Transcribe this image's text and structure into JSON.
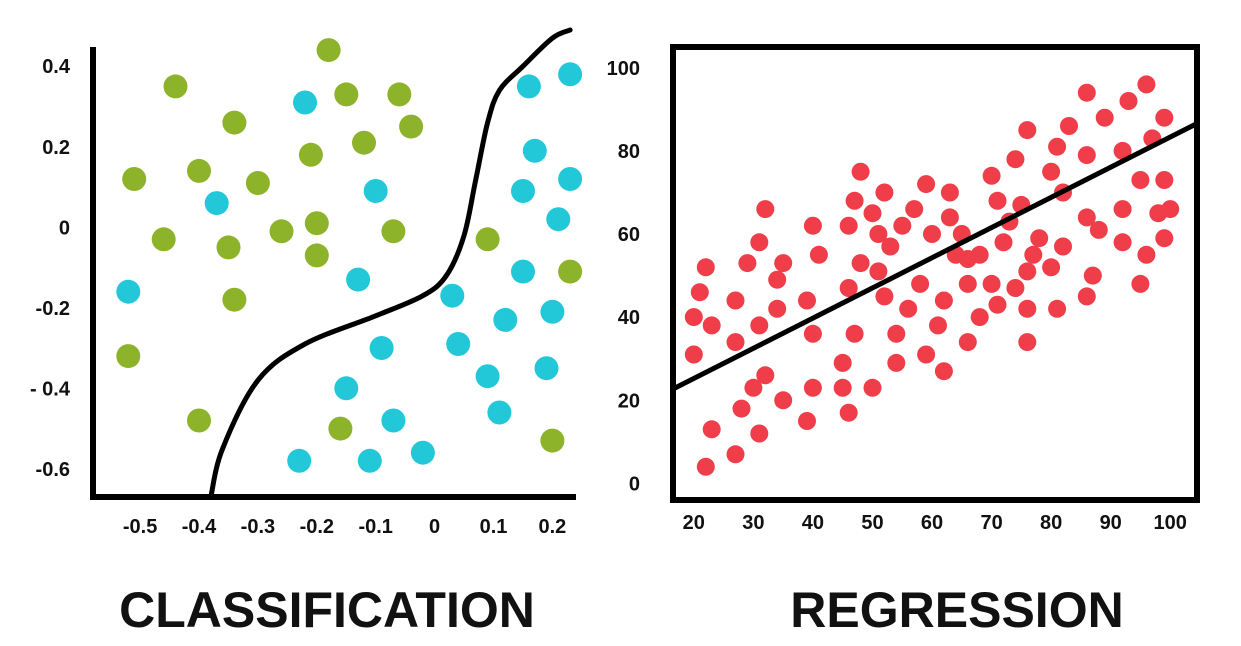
{
  "chart_data": [
    {
      "type": "scatter",
      "caption": "CLASSIFICATION",
      "x_ticks": [
        "-0.5",
        "-0.4",
        "-0.3",
        "-0.2",
        "-0.1",
        "0",
        "0.1",
        "0.2"
      ],
      "y_ticks": [
        "0.4",
        "0.2",
        "0",
        "-0.2",
        "- 0.4",
        "-0.6"
      ],
      "xlim": [
        -0.58,
        0.24
      ],
      "ylim": [
        -0.67,
        0.49
      ],
      "grid": false,
      "legend": "none",
      "series": [
        {
          "color": "#8db32a",
          "points": [
            [
              -0.18,
              0.44
            ],
            [
              -0.44,
              0.35
            ],
            [
              -0.15,
              0.33
            ],
            [
              -0.06,
              0.33
            ],
            [
              -0.34,
              0.26
            ],
            [
              -0.04,
              0.25
            ],
            [
              -0.12,
              0.21
            ],
            [
              -0.21,
              0.18
            ],
            [
              -0.4,
              0.14
            ],
            [
              -0.51,
              0.12
            ],
            [
              -0.3,
              0.11
            ],
            [
              -0.26,
              -0.01
            ],
            [
              -0.2,
              0.01
            ],
            [
              -0.07,
              -0.01
            ],
            [
              -0.46,
              -0.03
            ],
            [
              -0.35,
              -0.05
            ],
            [
              -0.2,
              -0.07
            ],
            [
              0.09,
              -0.03
            ],
            [
              0.23,
              -0.11
            ],
            [
              -0.34,
              -0.18
            ],
            [
              -0.52,
              -0.32
            ],
            [
              -0.4,
              -0.48
            ],
            [
              -0.16,
              -0.5
            ],
            [
              0.2,
              -0.53
            ]
          ]
        },
        {
          "color": "#22c8d8",
          "points": [
            [
              0.16,
              0.35
            ],
            [
              0.23,
              0.38
            ],
            [
              -0.22,
              0.31
            ],
            [
              0.17,
              0.19
            ],
            [
              0.23,
              0.12
            ],
            [
              -0.37,
              0.06
            ],
            [
              -0.1,
              0.09
            ],
            [
              0.15,
              0.09
            ],
            [
              0.21,
              0.02
            ],
            [
              -0.13,
              -0.13
            ],
            [
              -0.52,
              -0.16
            ],
            [
              0.15,
              -0.11
            ],
            [
              0.03,
              -0.17
            ],
            [
              0.12,
              -0.23
            ],
            [
              0.2,
              -0.21
            ],
            [
              -0.09,
              -0.3
            ],
            [
              0.04,
              -0.29
            ],
            [
              0.09,
              -0.37
            ],
            [
              0.19,
              -0.35
            ],
            [
              -0.15,
              -0.4
            ],
            [
              -0.07,
              -0.48
            ],
            [
              0.11,
              -0.46
            ],
            [
              -0.23,
              -0.58
            ],
            [
              -0.11,
              -0.58
            ],
            [
              -0.02,
              -0.56
            ]
          ]
        }
      ],
      "boundary": [
        [
          -0.38,
          -0.67
        ],
        [
          -0.36,
          -0.55
        ],
        [
          -0.3,
          -0.38
        ],
        [
          -0.22,
          -0.29
        ],
        [
          -0.1,
          -0.22
        ],
        [
          -0.02,
          -0.17
        ],
        [
          0.02,
          -0.12
        ],
        [
          0.05,
          -0.02
        ],
        [
          0.07,
          0.12
        ],
        [
          0.09,
          0.26
        ],
        [
          0.11,
          0.34
        ],
        [
          0.15,
          0.4
        ],
        [
          0.2,
          0.47
        ],
        [
          0.23,
          0.49
        ]
      ]
    },
    {
      "type": "scatter",
      "caption": "REGRESSION",
      "x_ticks": [
        "20",
        "30",
        "40",
        "50",
        "60",
        "70",
        "80",
        "90",
        "100"
      ],
      "y_ticks": [
        "100",
        "80",
        "60",
        "40",
        "20",
        "0"
      ],
      "xlim": [
        16.5,
        104.5
      ],
      "ylim": [
        -4,
        105
      ],
      "grid": false,
      "legend": "none",
      "trend_line": [
        [
          16.5,
          22.7
        ],
        [
          104.5,
          86.6
        ]
      ],
      "series": [
        {
          "color": "#ef3e4a",
          "points": [
            [
              22,
              52
            ],
            [
              21,
              46
            ],
            [
              20,
              40
            ],
            [
              20,
              31
            ],
            [
              23,
              38
            ],
            [
              27,
              44
            ],
            [
              29,
              53
            ],
            [
              31,
              58
            ],
            [
              32,
              66
            ],
            [
              34,
              49
            ],
            [
              35,
              53
            ],
            [
              27,
              34
            ],
            [
              31,
              38
            ],
            [
              34,
              42
            ],
            [
              39,
              44
            ],
            [
              41,
              55
            ],
            [
              40,
              62
            ],
            [
              40,
              36
            ],
            [
              32,
              26
            ],
            [
              30,
              23
            ],
            [
              35,
              20
            ],
            [
              28,
              18
            ],
            [
              23,
              13
            ],
            [
              31,
              12
            ],
            [
              27,
              7
            ],
            [
              22,
              4
            ],
            [
              39,
              15
            ],
            [
              40,
              23
            ],
            [
              47,
              68
            ],
            [
              48,
              75
            ],
            [
              50,
              65
            ],
            [
              52,
              70
            ],
            [
              46,
              62
            ],
            [
              51,
              60
            ],
            [
              53,
              57
            ],
            [
              55,
              62
            ],
            [
              57,
              66
            ],
            [
              59,
              72
            ],
            [
              60,
              60
            ],
            [
              63,
              64
            ],
            [
              63,
              70
            ],
            [
              65,
              60
            ],
            [
              46,
              47
            ],
            [
              48,
              53
            ],
            [
              51,
              51
            ],
            [
              58,
              48
            ],
            [
              62,
              44
            ],
            [
              64,
              55
            ],
            [
              66,
              48
            ],
            [
              66,
              54
            ],
            [
              52,
              45
            ],
            [
              56,
              42
            ],
            [
              61,
              38
            ],
            [
              54,
              36
            ],
            [
              47,
              36
            ],
            [
              45,
              29
            ],
            [
              45,
              23
            ],
            [
              50,
              23
            ],
            [
              54,
              29
            ],
            [
              59,
              31
            ],
            [
              66,
              34
            ],
            [
              62,
              27
            ],
            [
              46,
              17
            ],
            [
              70,
              74
            ],
            [
              71,
              68
            ],
            [
              74,
              78
            ],
            [
              76,
              85
            ],
            [
              75,
              67
            ],
            [
              78,
              59
            ],
            [
              81,
              81
            ],
            [
              83,
              86
            ],
            [
              86,
              94
            ],
            [
              89,
              88
            ],
            [
              93,
              92
            ],
            [
              96,
              96
            ],
            [
              97,
              83
            ],
            [
              99,
              88
            ],
            [
              92,
              80
            ],
            [
              86,
              79
            ],
            [
              80,
              75
            ],
            [
              82,
              70
            ],
            [
              86,
              64
            ],
            [
              88,
              61
            ],
            [
              92,
              66
            ],
            [
              95,
              73
            ],
            [
              99,
              73
            ],
            [
              100,
              66
            ],
            [
              98,
              65
            ],
            [
              96,
              55
            ],
            [
              99,
              59
            ],
            [
              95,
              48
            ],
            [
              92,
              58
            ],
            [
              87,
              50
            ],
            [
              86,
              45
            ],
            [
              82,
              57
            ],
            [
              80,
              52
            ],
            [
              77,
              55
            ],
            [
              76,
              51
            ],
            [
              74,
              47
            ],
            [
              71,
              43
            ],
            [
              68,
              40
            ],
            [
              70,
              48
            ],
            [
              68,
              55
            ],
            [
              72,
              58
            ],
            [
              73,
              63
            ],
            [
              76,
              42
            ],
            [
              81,
              42
            ],
            [
              76,
              34
            ]
          ]
        }
      ]
    }
  ]
}
